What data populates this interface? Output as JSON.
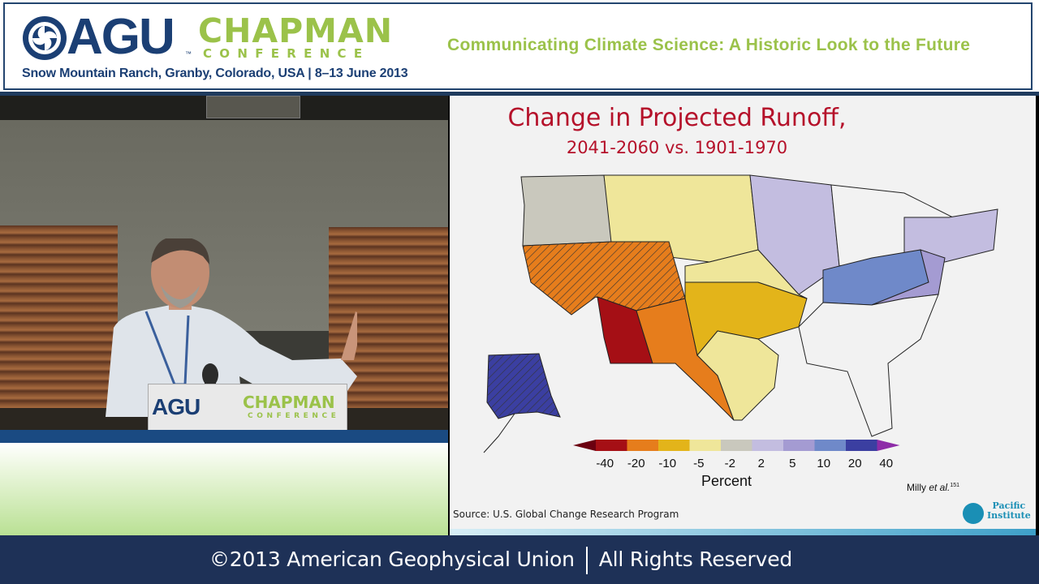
{
  "banner": {
    "logo_text": "AGU",
    "chapman": "CHAPMAN",
    "conference": "CONFERENCE",
    "location": "Snow Mountain Ranch, Granby, Colorado, USA | 8–13 June 2013",
    "title": "Communicating Climate Science: A Historic Look to the Future"
  },
  "podium": {
    "logo_text": "AGU",
    "chapman": "CHAPMAN",
    "conference": "CONFERENCE"
  },
  "slide": {
    "title_line1": "Change in Projected Runoff,",
    "title_line2": "2041-2060 vs. 1901-1970",
    "legend_title": "Percent",
    "legend_ticks": [
      "-40",
      "-20",
      "-10",
      "-5",
      "-2",
      "2",
      "5",
      "10",
      "20",
      "40"
    ],
    "legend_colors": [
      "#a50f15",
      "#e67d1c",
      "#e3b41a",
      "#efe69a",
      "#c9c8bd",
      "#c3bde0",
      "#a49bd2",
      "#6f89c9",
      "#3b3fa1"
    ],
    "citation_author": "Milly",
    "citation_etal": "et al.",
    "citation_ref": "151",
    "source": "Source: U.S. Global Change Research Program",
    "pacific_logo_line1": "Pacific",
    "pacific_logo_line2": "Institute"
  },
  "footer": {
    "copyright": "©2013 American Geophysical Union",
    "rights": "All Rights Reserved"
  }
}
